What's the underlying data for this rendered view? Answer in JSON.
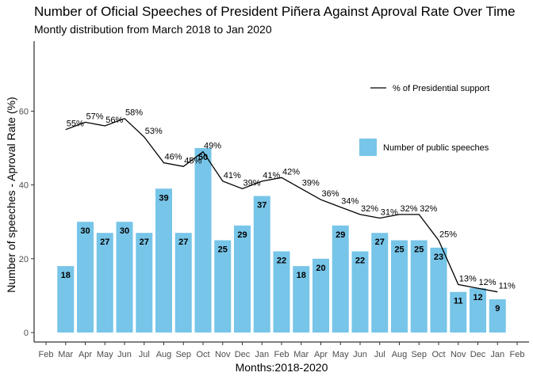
{
  "title": "Number of Oficial Speeches of President Piñera Against Aproval Rate Over Time",
  "subtitle": "Montly distribution from March 2018 to Jan 2020",
  "chart_data": {
    "type": "bar",
    "xlabel": "Months:2018-2020",
    "ylabel": "Number of speeches - Aproval Rate (%)",
    "ylim": [
      0,
      80
    ],
    "yticks": [
      0,
      20,
      40,
      60
    ],
    "x_tick_labels": [
      "Feb",
      "Mar",
      "Apr",
      "May",
      "Jun",
      "Jul",
      "Aug",
      "Sep",
      "Oct",
      "Nov",
      "Dec",
      "Jan",
      "Feb",
      "Mar",
      "Apr",
      "May",
      "Jun",
      "Jul",
      "Aug",
      "Sep",
      "Oct",
      "Nov",
      "Dec",
      "Jan",
      "Feb"
    ],
    "categories": [
      "Mar",
      "Apr",
      "May",
      "Jun",
      "Jul",
      "Aug",
      "Sep",
      "Oct",
      "Nov",
      "Dec",
      "Jan",
      "Feb",
      "Mar",
      "Apr",
      "May",
      "Jun",
      "Jul",
      "Aug",
      "Sep",
      "Oct",
      "Nov",
      "Dec",
      "Jan"
    ],
    "series": [
      {
        "name": "Number of public speeches",
        "kind": "bar",
        "color": "#77C5E8",
        "values": [
          18,
          30,
          27,
          30,
          27,
          39,
          27,
          50,
          25,
          29,
          37,
          22,
          18,
          20,
          29,
          22,
          27,
          25,
          25,
          23,
          11,
          12,
          9
        ]
      },
      {
        "name": "% of Presidential support",
        "kind": "line",
        "color": "#000000",
        "values": [
          55,
          57,
          56,
          58,
          53,
          46,
          45,
          49,
          41,
          39,
          41,
          42,
          39,
          36,
          34,
          32,
          31,
          32,
          32,
          25,
          13,
          12,
          11
        ],
        "labels": [
          "55%",
          "57%",
          "56%",
          "58%",
          "53%",
          "46%",
          "45%",
          "49%",
          "41%",
          "39%",
          "41%",
          "42%",
          "39%",
          "36%",
          "34%",
          "32%",
          "31%",
          "32%",
          "32%",
          "25%",
          "13%",
          "12%",
          "11%"
        ]
      }
    ],
    "grid": false,
    "legend": "right"
  }
}
